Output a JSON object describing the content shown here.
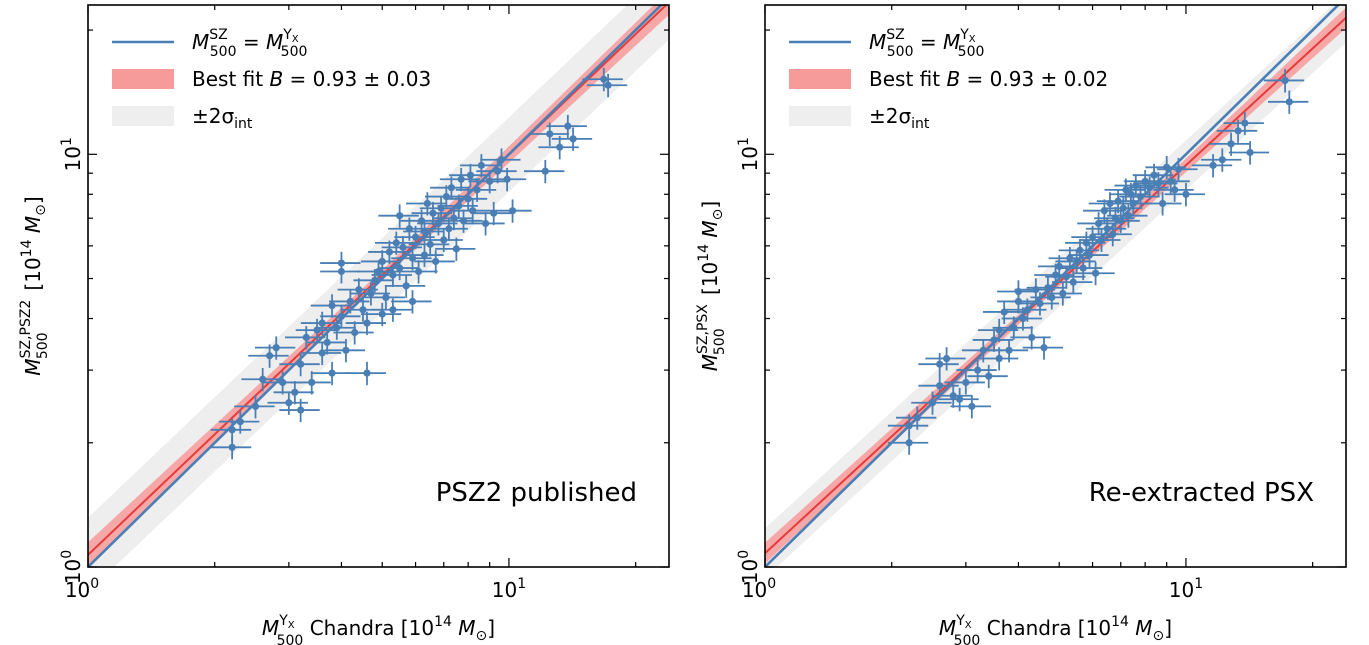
{
  "chart_data": [
    {
      "type": "scatter",
      "scale": "log-log",
      "xlim": [
        1,
        24
      ],
      "ylim": [
        1,
        23
      ],
      "xticks": [
        {
          "value": 1,
          "base": "10",
          "exp": "0"
        },
        {
          "value": 10,
          "base": "10",
          "exp": "1"
        }
      ],
      "yticks": [
        {
          "value": 1,
          "base": "10",
          "exp": "0"
        },
        {
          "value": 10,
          "base": "10",
          "exp": "1"
        }
      ],
      "xlabel": {
        "sym": "M",
        "sub": "500",
        "sup": "Y",
        "supsub": "X",
        "text": " Chandra [10",
        "exp": "14",
        "unit": " M",
        "unitsub": "⊙",
        "close": "]"
      },
      "ylabel": {
        "sym": "M",
        "sub": "500",
        "sup": "SZ,PSZ2",
        "text": " [10",
        "exp": "14",
        "unit": " M",
        "unitsub": "⊙",
        "close": "]"
      },
      "annotation": "PSZ2 published",
      "legend": [
        {
          "label": "M500SZ = M500YX",
          "type": "line",
          "color": "#4a7fb5"
        },
        {
          "label": "Best fit B = 0.93 ± 0.03",
          "type": "band",
          "color": "#f79a9a"
        },
        {
          "label": "±2σint",
          "type": "band",
          "color": "#eeeeee"
        }
      ],
      "legend_text": {
        "best_fit_prefix": "Best fit ",
        "B": "B",
        "best_fit_value": " = 0.93 ± 0.03",
        "pm2": "±2σ",
        "int": "int"
      },
      "fit": {
        "B": 0.93,
        "B_err": 0.03,
        "slope": 0.97,
        "intercept_at_1": 1.07,
        "band_log_halfwidth": 0.09,
        "fit_band_halfwidth": 0.012
      },
      "color_points": "#4a7fb5",
      "color_fit": "#e63b3b",
      "color_fit_band": "#f79a9a",
      "color_scatter_band": "#eeeeee",
      "points": [
        [
          2.2,
          2.15
        ],
        [
          2.2,
          1.95
        ],
        [
          2.3,
          2.25
        ],
        [
          2.5,
          2.45
        ],
        [
          2.6,
          2.85
        ],
        [
          2.7,
          3.25
        ],
        [
          2.8,
          3.4
        ],
        [
          2.9,
          2.8
        ],
        [
          3.0,
          2.5
        ],
        [
          3.1,
          2.65
        ],
        [
          3.2,
          2.4
        ],
        [
          3.2,
          3.1
        ],
        [
          3.3,
          3.6
        ],
        [
          3.4,
          2.8
        ],
        [
          3.5,
          3.75
        ],
        [
          3.6,
          3.9
        ],
        [
          3.6,
          3.3
        ],
        [
          3.7,
          3.5
        ],
        [
          3.8,
          2.95
        ],
        [
          3.8,
          4.3
        ],
        [
          3.9,
          3.8
        ],
        [
          4.0,
          4.05
        ],
        [
          4.0,
          5.45
        ],
        [
          4.0,
          5.2
        ],
        [
          4.1,
          3.35
        ],
        [
          4.2,
          4.4
        ],
        [
          4.3,
          3.7
        ],
        [
          4.4,
          4.7
        ],
        [
          4.5,
          4.2
        ],
        [
          4.6,
          2.95
        ],
        [
          4.6,
          3.9
        ],
        [
          4.7,
          4.6
        ],
        [
          4.8,
          4.95
        ],
        [
          4.9,
          5.2
        ],
        [
          5.0,
          5.5
        ],
        [
          5.0,
          4.1
        ],
        [
          5.1,
          4.5
        ],
        [
          5.2,
          5.8
        ],
        [
          5.3,
          4.2
        ],
        [
          5.3,
          5.1
        ],
        [
          5.4,
          6.1
        ],
        [
          5.5,
          5.3
        ],
        [
          5.5,
          7.1
        ],
        [
          5.6,
          5.95
        ],
        [
          5.7,
          4.8
        ],
        [
          5.8,
          6.6
        ],
        [
          5.9,
          5.6
        ],
        [
          5.9,
          4.4
        ],
        [
          6.0,
          6.3
        ],
        [
          6.1,
          5.2
        ],
        [
          6.2,
          6.9
        ],
        [
          6.3,
          6.5
        ],
        [
          6.3,
          5.7
        ],
        [
          6.4,
          7.6
        ],
        [
          6.5,
          6.05
        ],
        [
          6.6,
          7.2
        ],
        [
          6.7,
          5.5
        ],
        [
          6.8,
          6.8
        ],
        [
          6.9,
          7.4
        ],
        [
          7.0,
          6.2
        ],
        [
          7.1,
          7.9
        ],
        [
          7.2,
          6.6
        ],
        [
          7.3,
          8.3
        ],
        [
          7.4,
          7.0
        ],
        [
          7.5,
          5.9
        ],
        [
          7.6,
          7.5
        ],
        [
          7.7,
          8.7
        ],
        [
          7.8,
          6.9
        ],
        [
          8.0,
          7.8
        ],
        [
          8.1,
          8.9
        ],
        [
          8.2,
          7.3
        ],
        [
          8.4,
          8.2
        ],
        [
          8.6,
          9.4
        ],
        [
          8.8,
          6.8
        ],
        [
          9.0,
          8.6
        ],
        [
          9.2,
          7.2
        ],
        [
          9.4,
          9.1
        ],
        [
          9.6,
          9.7
        ],
        [
          9.9,
          8.7
        ],
        [
          10.2,
          7.3
        ],
        [
          12.2,
          9.1
        ],
        [
          12.5,
          11.2
        ],
        [
          13.2,
          10.4
        ],
        [
          13.8,
          11.7
        ],
        [
          14.2,
          10.9
        ],
        [
          16.8,
          15.2
        ],
        [
          17.2,
          14.7
        ]
      ]
    },
    {
      "type": "scatter",
      "scale": "log-log",
      "xlim": [
        1,
        24
      ],
      "ylim": [
        1,
        23
      ],
      "xticks": [
        {
          "value": 1,
          "base": "10",
          "exp": "0"
        },
        {
          "value": 10,
          "base": "10",
          "exp": "1"
        }
      ],
      "yticks": [
        {
          "value": 1,
          "base": "10",
          "exp": "0"
        },
        {
          "value": 10,
          "base": "10",
          "exp": "1"
        }
      ],
      "xlabel": {
        "sym": "M",
        "sub": "500",
        "sup": "Y",
        "supsub": "X",
        "text": " Chandra [10",
        "exp": "14",
        "unit": " M",
        "unitsub": "⊙",
        "close": "]"
      },
      "ylabel": {
        "sym": "M",
        "sub": "500",
        "sup": "SZ,PSX",
        "text": " [10",
        "exp": "14",
        "unit": " M",
        "unitsub": "⊙",
        "close": "]"
      },
      "annotation": "Re-extracted PSX",
      "legend": [
        {
          "label": "M500SZ = M500YX",
          "type": "line",
          "color": "#4a7fb5"
        },
        {
          "label": "Best fit B = 0.93 ± 0.02",
          "type": "band",
          "color": "#f79a9a"
        },
        {
          "label": "±2σint",
          "type": "band",
          "color": "#eeeeee"
        }
      ],
      "legend_text": {
        "best_fit_prefix": "Best fit ",
        "B": "B",
        "best_fit_value": " = 0.93 ± 0.02",
        "pm2": "±2σ",
        "int": "int"
      },
      "fit": {
        "B": 0.93,
        "B_err": 0.02,
        "slope": 0.94,
        "intercept_at_1": 1.08,
        "band_log_halfwidth": 0.06,
        "fit_band_halfwidth": 0.01
      },
      "color_points": "#4a7fb5",
      "color_fit": "#e63b3b",
      "color_fit_band": "#f79a9a",
      "color_scatter_band": "#eeeeee",
      "points": [
        [
          2.2,
          2.2
        ],
        [
          2.2,
          2.0
        ],
        [
          2.3,
          2.3
        ],
        [
          2.5,
          2.5
        ],
        [
          2.6,
          2.75
        ],
        [
          2.6,
          3.1
        ],
        [
          2.7,
          3.2
        ],
        [
          2.8,
          2.6
        ],
        [
          2.9,
          2.55
        ],
        [
          3.0,
          2.8
        ],
        [
          3.1,
          2.45
        ],
        [
          3.2,
          3.0
        ],
        [
          3.3,
          3.35
        ],
        [
          3.4,
          2.9
        ],
        [
          3.5,
          3.55
        ],
        [
          3.6,
          3.75
        ],
        [
          3.6,
          3.2
        ],
        [
          3.7,
          4.15
        ],
        [
          3.8,
          3.35
        ],
        [
          3.9,
          3.8
        ],
        [
          4.0,
          4.4
        ],
        [
          4.0,
          4.65
        ],
        [
          4.1,
          4.0
        ],
        [
          4.2,
          4.2
        ],
        [
          4.3,
          3.6
        ],
        [
          4.4,
          4.7
        ],
        [
          4.5,
          4.35
        ],
        [
          4.6,
          3.4
        ],
        [
          4.7,
          4.75
        ],
        [
          4.8,
          4.5
        ],
        [
          4.9,
          5.1
        ],
        [
          5.0,
          5.35
        ],
        [
          5.1,
          4.6
        ],
        [
          5.2,
          5.05
        ],
        [
          5.3,
          5.6
        ],
        [
          5.4,
          4.9
        ],
        [
          5.5,
          5.5
        ],
        [
          5.6,
          5.85
        ],
        [
          5.7,
          5.3
        ],
        [
          5.8,
          6.1
        ],
        [
          5.9,
          5.7
        ],
        [
          6.0,
          6.3
        ],
        [
          6.1,
          5.15
        ],
        [
          6.2,
          6.8
        ],
        [
          6.3,
          6.2
        ],
        [
          6.4,
          7.3
        ],
        [
          6.5,
          6.6
        ],
        [
          6.6,
          7.6
        ],
        [
          6.7,
          6.4
        ],
        [
          6.8,
          7.0
        ],
        [
          6.9,
          7.7
        ],
        [
          7.0,
          6.9
        ],
        [
          7.1,
          7.4
        ],
        [
          7.2,
          8.2
        ],
        [
          7.3,
          7.1
        ],
        [
          7.4,
          8.0
        ],
        [
          7.5,
          7.6
        ],
        [
          7.6,
          8.4
        ],
        [
          7.8,
          7.9
        ],
        [
          8.0,
          8.6
        ],
        [
          8.2,
          8.3
        ],
        [
          8.4,
          8.9
        ],
        [
          8.6,
          8.5
        ],
        [
          8.8,
          7.6
        ],
        [
          9.0,
          9.3
        ],
        [
          9.2,
          8.6
        ],
        [
          9.4,
          8.2
        ],
        [
          9.6,
          9.2
        ],
        [
          10.0,
          8.0
        ],
        [
          11.6,
          9.4
        ],
        [
          12.2,
          9.7
        ],
        [
          12.8,
          10.6
        ],
        [
          13.3,
          11.4
        ],
        [
          13.8,
          11.9
        ],
        [
          14.2,
          10.1
        ],
        [
          17.2,
          15.1
        ],
        [
          17.6,
          13.4
        ]
      ]
    }
  ]
}
